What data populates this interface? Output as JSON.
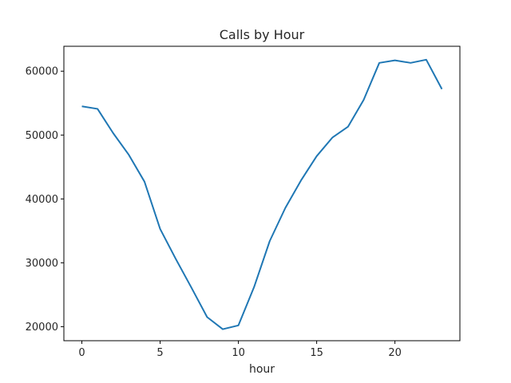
{
  "chart_data": {
    "type": "line",
    "title": "Calls by Hour",
    "xlabel": "hour",
    "ylabel": "",
    "xlim": [
      -1.15,
      24.15
    ],
    "ylim": [
      17800,
      63900
    ],
    "xticks": [
      0,
      5,
      10,
      15,
      20
    ],
    "yticks": [
      20000,
      30000,
      40000,
      50000,
      60000
    ],
    "grid": false,
    "series": [
      {
        "color": "#1f77b4",
        "x": [
          0,
          1,
          2,
          3,
          4,
          5,
          6,
          7,
          8,
          9,
          10,
          11,
          12,
          13,
          14,
          15,
          16,
          17,
          18,
          19,
          20,
          21,
          22,
          23
        ],
        "y": [
          54500,
          54100,
          50300,
          46900,
          42700,
          35300,
          30600,
          26100,
          21500,
          19600,
          20200,
          26200,
          33400,
          38600,
          42900,
          46700,
          49600,
          51300,
          55500,
          61300,
          61700,
          61300,
          61800,
          57200
        ]
      }
    ]
  }
}
